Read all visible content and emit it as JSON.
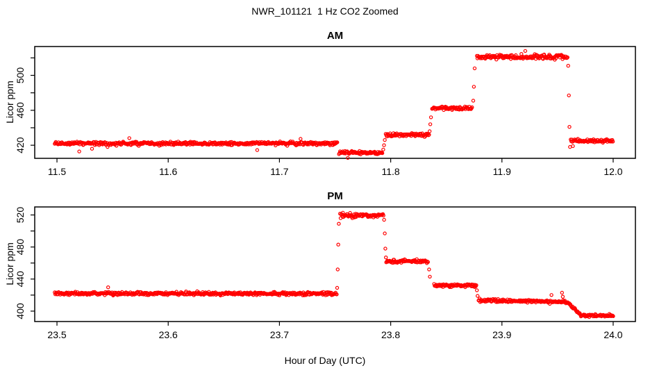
{
  "title": "NWR_101121  1 Hz CO2 Zoomed",
  "xlabel": "Hour of Day (UTC)",
  "marker": {
    "shape": "open-circle",
    "color": "#FF0000",
    "radius": 2.1,
    "stroke_width": 1.2
  },
  "axis_color": "#000000",
  "background": "#FFFFFF",
  "chart_data": [
    {
      "type": "scatter",
      "panel_title": "AM",
      "ylabel": "Licor ppm",
      "xlim": [
        11.48,
        12.02
      ],
      "ylim": [
        405,
        533
      ],
      "grid": false,
      "legend": false,
      "xticks": [
        11.5,
        11.6,
        11.7,
        11.8,
        11.9,
        12.0
      ],
      "xtick_labels": [
        "11.5",
        "11.6",
        "11.7",
        "11.8",
        "11.9",
        "12.0"
      ],
      "yticks": [
        420,
        440,
        460,
        480,
        500,
        520
      ],
      "ytick_labeled": [
        420,
        460,
        500
      ],
      "ytick_labels": [
        "420",
        "460",
        "500"
      ],
      "sample_step_hours": 0.0005,
      "seed": 101121,
      "segments": [
        {
          "x0": 11.498,
          "x1": 11.752,
          "value": 422,
          "noise": 1.7
        },
        {
          "x0": 11.7535,
          "x1": 11.7925,
          "value": 411.5,
          "noise": 1.7
        },
        {
          "x0": 11.7955,
          "x1": 11.8345,
          "value": 432,
          "noise": 1.7
        },
        {
          "x0": 11.8372,
          "x1": 11.8735,
          "value": 462.5,
          "noise": 1.7
        },
        {
          "x0": 11.8775,
          "x1": 11.959,
          "value": 521,
          "noise": 2.2
        },
        {
          "x0": 11.9618,
          "x1": 12.0,
          "value": 425,
          "noise": 1.6
        }
      ],
      "transition_points": [
        [
          11.7933,
          415
        ],
        [
          11.794,
          420
        ],
        [
          11.7947,
          426
        ],
        [
          11.835,
          436
        ],
        [
          11.8356,
          444
        ],
        [
          11.8362,
          452
        ],
        [
          11.8742,
          471
        ],
        [
          11.8748,
          487
        ],
        [
          11.8755,
          508
        ],
        [
          11.9596,
          511
        ],
        [
          11.9602,
          477
        ],
        [
          11.9607,
          441
        ],
        [
          11.9612,
          418
        ]
      ]
    },
    {
      "type": "scatter",
      "panel_title": "PM",
      "ylabel": "Licor ppm",
      "xlim": [
        23.48,
        24.02
      ],
      "ylim": [
        387,
        530
      ],
      "grid": false,
      "legend": false,
      "xticks": [
        23.5,
        23.6,
        23.7,
        23.8,
        23.9,
        24.0
      ],
      "xtick_labels": [
        "23.5",
        "23.6",
        "23.7",
        "23.8",
        "23.9",
        "24.0"
      ],
      "yticks": [
        400,
        420,
        440,
        460,
        480,
        500,
        520
      ],
      "ytick_labeled": [
        400,
        440,
        480,
        520
      ],
      "ytick_labels": [
        "400",
        "440",
        "480",
        "520"
      ],
      "sample_step_hours": 0.0005,
      "seed": 231121,
      "segments": [
        {
          "x0": 23.498,
          "x1": 23.7515,
          "value": 422,
          "noise": 1.7
        },
        {
          "x0": 23.7545,
          "x1": 23.7935,
          "value": 519.5,
          "noise": 2.2
        },
        {
          "x0": 23.796,
          "x1": 23.8335,
          "value": 462,
          "noise": 1.8
        },
        {
          "x0": 23.839,
          "x1": 23.877,
          "value": 432,
          "noise": 1.7
        },
        {
          "x0": 23.879,
          "x1": 23.9575,
          "v0": 413.5,
          "v1": 411.5,
          "noise": 1.7
        },
        {
          "x0": 23.9585,
          "x1": 23.9705,
          "v0": 411,
          "v1": 396,
          "noise": 1.2
        },
        {
          "x0": 23.971,
          "x1": 24.0,
          "value": 394.5,
          "noise": 1.2
        }
      ],
      "transition_points": [
        [
          23.7519,
          429
        ],
        [
          23.7524,
          452
        ],
        [
          23.7529,
          483
        ],
        [
          23.7534,
          509
        ],
        [
          23.7941,
          514
        ],
        [
          23.7947,
          497
        ],
        [
          23.7952,
          478
        ],
        [
          23.7957,
          467
        ],
        [
          23.8345,
          452
        ],
        [
          23.8352,
          443
        ],
        [
          23.8775,
          426
        ],
        [
          23.8781,
          419
        ],
        [
          23.954,
          423
        ],
        [
          23.9547,
          418
        ]
      ]
    }
  ]
}
